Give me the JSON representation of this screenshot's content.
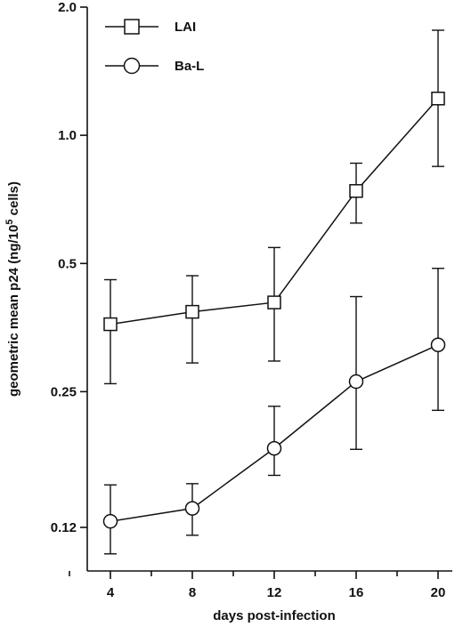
{
  "chart_data": {
    "type": "line",
    "xlabel": "days post-infection",
    "ylabel_parts": [
      "geometric mean p24 (ng/10",
      "5",
      " cells)"
    ],
    "y_scale": "log",
    "ylim": [
      0.1,
      2.0
    ],
    "xlim": [
      2,
      22
    ],
    "x_ticks": [
      4,
      8,
      12,
      16,
      20
    ],
    "y_ticks": [
      0.12,
      0.25,
      0.5,
      1.0,
      2.0
    ],
    "y_tick_labels": [
      "0.12",
      "0.25",
      "0.5",
      "1.0",
      "2.0"
    ],
    "grid": false,
    "legend_position": "top-left",
    "series": [
      {
        "name": "LAI",
        "marker": "square",
        "x": [
          4,
          8,
          12,
          16,
          20
        ],
        "y": [
          0.36,
          0.385,
          0.405,
          0.74,
          1.22
        ],
        "err_low": [
          0.261,
          0.292,
          0.295,
          0.622,
          0.845
        ],
        "err_high": [
          0.458,
          0.468,
          0.545,
          0.86,
          1.765
        ]
      },
      {
        "name": "Ba-L",
        "marker": "circle",
        "x": [
          4,
          8,
          12,
          16,
          20
        ],
        "y": [
          0.124,
          0.133,
          0.184,
          0.264,
          0.322
        ],
        "err_low": [
          0.104,
          0.115,
          0.159,
          0.183,
          0.226
        ],
        "err_high": [
          0.151,
          0.152,
          0.231,
          0.418,
          0.487
        ]
      }
    ]
  }
}
